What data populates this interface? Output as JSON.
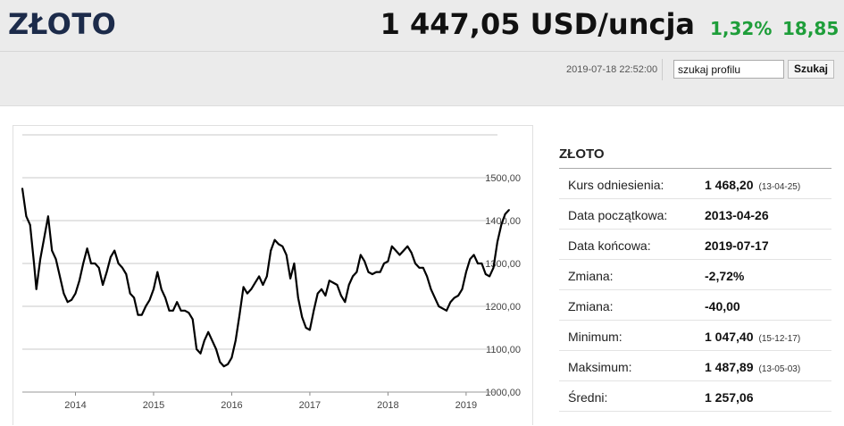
{
  "header": {
    "title": "ZŁOTO",
    "price": "1 447,05 USD/uncja",
    "change_pct": "1,32%",
    "change_abs": "18,85",
    "timestamp": "2019-07-18 22:52:00",
    "search_value": "szukaj profilu",
    "search_button": "Szukaj"
  },
  "colors": {
    "accent_green": "#1e9e3a",
    "title_navy": "#1c2b4a",
    "line": "#000000"
  },
  "stats": {
    "title": "ZŁOTO",
    "rows": [
      {
        "label": "Kurs odniesienia:",
        "value": "1 468,20",
        "date": "(13-04-25)"
      },
      {
        "label": "Data początkowa:",
        "value": "2013-04-26",
        "date": ""
      },
      {
        "label": "Data końcowa:",
        "value": "2019-07-17",
        "date": ""
      },
      {
        "label": "Zmiana:",
        "value": "-2,72%",
        "date": ""
      },
      {
        "label": "Zmiana:",
        "value": "-40,00",
        "date": ""
      },
      {
        "label": "Minimum:",
        "value": "1 047,40",
        "date": "(15-12-17)"
      },
      {
        "label": "Maksimum:",
        "value": "1 487,89",
        "date": "(13-05-03)"
      },
      {
        "label": "Średni:",
        "value": "1 257,06",
        "date": ""
      }
    ]
  },
  "chart_data": {
    "type": "line",
    "ylim": [
      1000,
      1600
    ],
    "yticks": [
      "1000,00",
      "1100,00",
      "1200,00",
      "1300,00",
      "1400,00",
      "1500,00"
    ],
    "xticks": [
      {
        "label": "2014",
        "year": 2014.0
      },
      {
        "label": "2015",
        "year": 2015.0
      },
      {
        "label": "2016",
        "year": 2016.0
      },
      {
        "label": "2017",
        "year": 2017.0
      },
      {
        "label": "2018",
        "year": 2018.0
      },
      {
        "label": "2019",
        "year": 2019.0
      }
    ],
    "xrange": [
      2013.32,
      2019.55
    ],
    "grid": true,
    "series": [
      {
        "x": [
          2013.32,
          2013.37,
          2013.42,
          2013.47,
          2013.5,
          2013.55,
          2013.6,
          2013.65,
          2013.7,
          2013.75,
          2013.8,
          2013.85,
          2013.9,
          2013.95,
          2014.0,
          2014.05,
          2014.1,
          2014.15,
          2014.2,
          2014.25,
          2014.3,
          2014.35,
          2014.4,
          2014.45,
          2014.5,
          2014.55,
          2014.6,
          2014.65,
          2014.7,
          2014.75,
          2014.8,
          2014.85,
          2014.9,
          2014.95,
          2015.0,
          2015.05,
          2015.1,
          2015.15,
          2015.2,
          2015.25,
          2015.3,
          2015.35,
          2015.4,
          2015.45,
          2015.5,
          2015.55,
          2015.6,
          2015.65,
          2015.7,
          2015.75,
          2015.8,
          2015.85,
          2015.9,
          2015.95,
          2016.0,
          2016.05,
          2016.1,
          2016.15,
          2016.2,
          2016.25,
          2016.3,
          2016.35,
          2016.4,
          2016.45,
          2016.5,
          2016.55,
          2016.6,
          2016.65,
          2016.7,
          2016.75,
          2016.8,
          2016.85,
          2016.9,
          2016.95,
          2017.0,
          2017.05,
          2017.1,
          2017.15,
          2017.2,
          2017.25,
          2017.3,
          2017.35,
          2017.4,
          2017.45,
          2017.5,
          2017.55,
          2017.6,
          2017.65,
          2017.7,
          2017.75,
          2017.8,
          2017.85,
          2017.9,
          2017.95,
          2018.0,
          2018.05,
          2018.1,
          2018.15,
          2018.2,
          2018.25,
          2018.3,
          2018.35,
          2018.4,
          2018.45,
          2018.5,
          2018.55,
          2018.6,
          2018.65,
          2018.7,
          2018.75,
          2018.8,
          2018.85,
          2018.9,
          2018.95,
          2019.0,
          2019.05,
          2019.1,
          2019.15,
          2019.2,
          2019.25,
          2019.3,
          2019.35,
          2019.4,
          2019.45,
          2019.5,
          2019.55
        ],
        "values": [
          1475,
          1410,
          1390,
          1300,
          1240,
          1310,
          1360,
          1410,
          1330,
          1310,
          1270,
          1230,
          1210,
          1215,
          1230,
          1260,
          1300,
          1335,
          1300,
          1300,
          1290,
          1250,
          1280,
          1315,
          1330,
          1300,
          1290,
          1275,
          1230,
          1220,
          1180,
          1180,
          1200,
          1215,
          1240,
          1280,
          1240,
          1220,
          1190,
          1190,
          1210,
          1190,
          1190,
          1185,
          1170,
          1100,
          1090,
          1120,
          1140,
          1120,
          1100,
          1070,
          1060,
          1065,
          1080,
          1120,
          1180,
          1245,
          1230,
          1240,
          1255,
          1270,
          1250,
          1270,
          1330,
          1355,
          1345,
          1340,
          1320,
          1265,
          1300,
          1220,
          1175,
          1150,
          1145,
          1190,
          1230,
          1240,
          1225,
          1260,
          1255,
          1250,
          1225,
          1210,
          1250,
          1270,
          1280,
          1320,
          1305,
          1280,
          1275,
          1280,
          1280,
          1300,
          1305,
          1340,
          1330,
          1320,
          1330,
          1340,
          1325,
          1300,
          1290,
          1290,
          1270,
          1240,
          1220,
          1200,
          1195,
          1190,
          1210,
          1220,
          1225,
          1240,
          1280,
          1310,
          1320,
          1300,
          1300,
          1275,
          1270,
          1290,
          1350,
          1390,
          1415,
          1425
        ]
      }
    ]
  }
}
